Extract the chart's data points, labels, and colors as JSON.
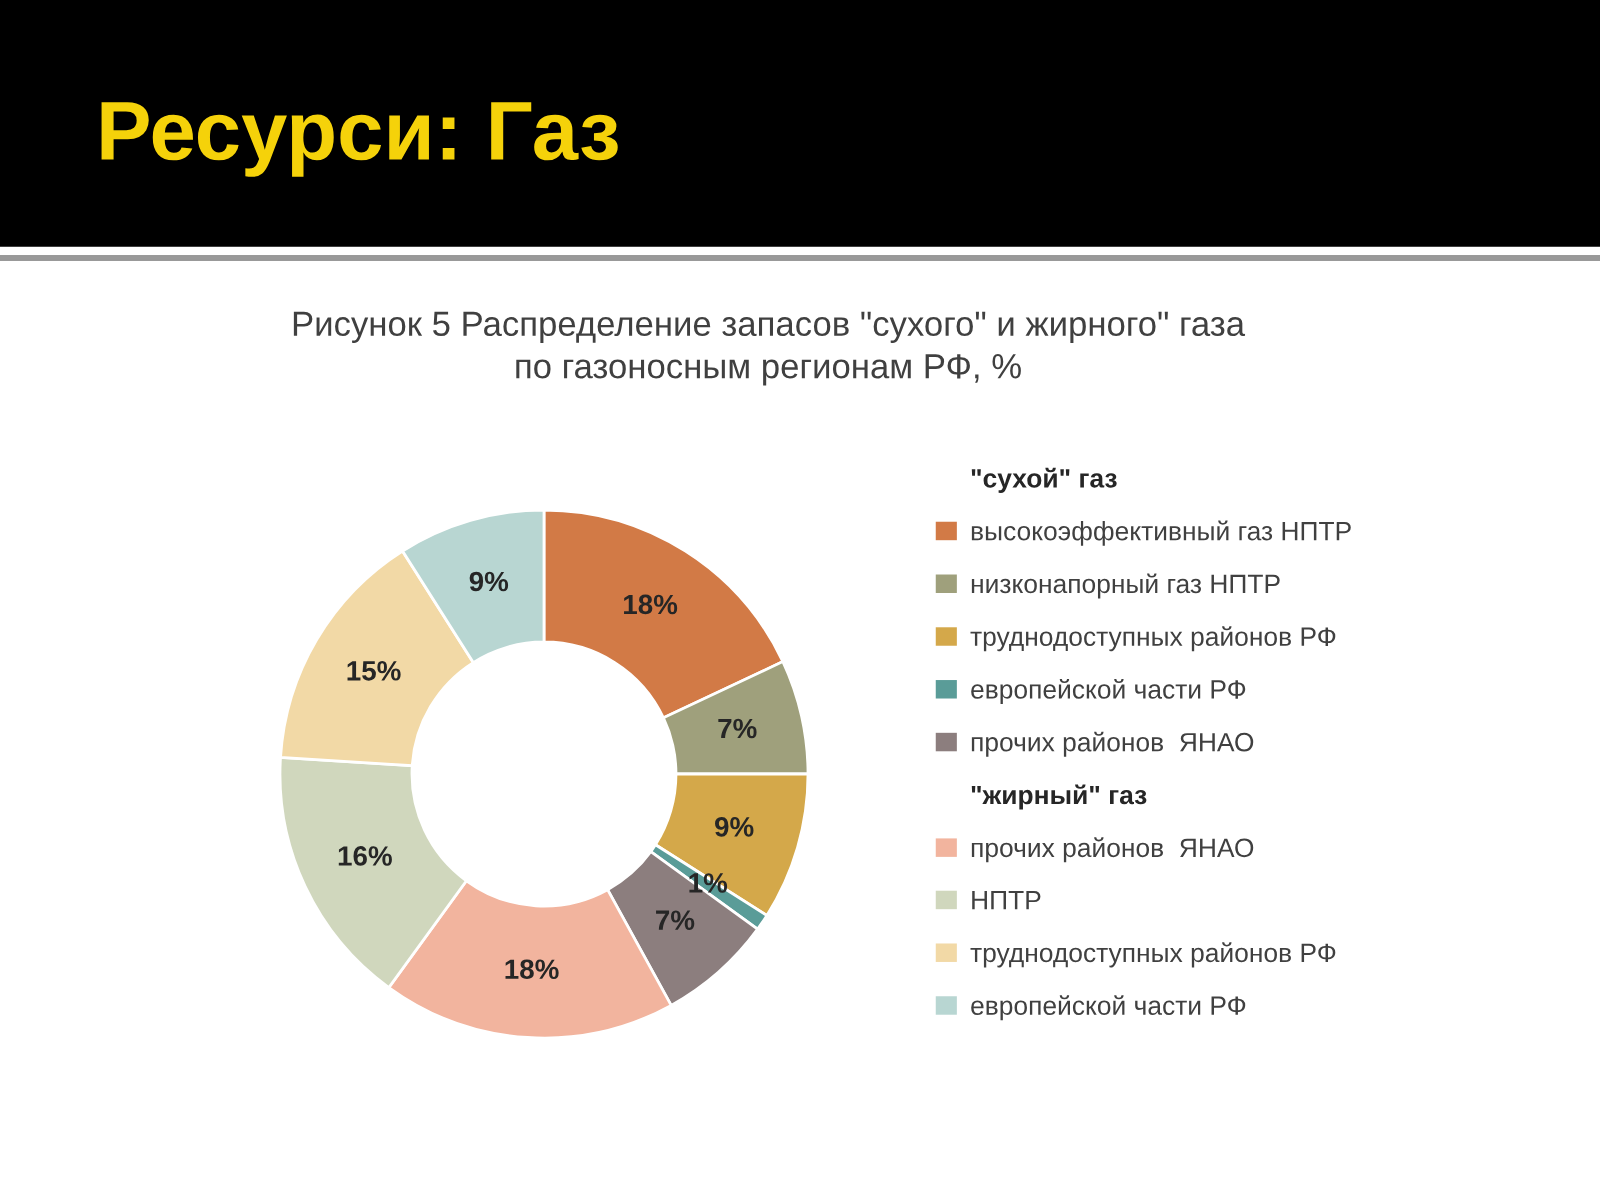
{
  "chart_data": {
    "type": "donut",
    "title": "Ресурси: Газ",
    "subtitle": "Рисунок 5 Распределение запасов \"сухого\" и жирного\" газа\nпо газоносным регионам РФ, %",
    "categories": [
      "высокоэффективный газ НПТР",
      "низконапорный газ НПТР",
      "труднодоступных районов РФ",
      "европейской части РФ",
      "прочих районов  ЯНАО",
      "прочих районов  ЯНАО",
      "НПТР",
      "труднодоступных районов РФ",
      "европейской части РФ"
    ],
    "values": [
      18,
      7,
      9,
      1,
      7,
      18,
      16,
      15,
      9
    ],
    "colors": [
      "#d27a46",
      "#9fa07c",
      "#d4a84a",
      "#5a9c98",
      "#8c7e7e",
      "#f2b49e",
      "#d0d7bd",
      "#f2d9a6",
      "#b8d6d2"
    ],
    "value_labels": [
      "18%",
      "7%",
      "9%",
      "1%",
      "7%",
      "18%",
      "16%",
      "15%",
      "9%"
    ],
    "legend": "right",
    "annotations": [
      "\"сухой\" газ",
      "\"жирный\" газ"
    ]
  }
}
